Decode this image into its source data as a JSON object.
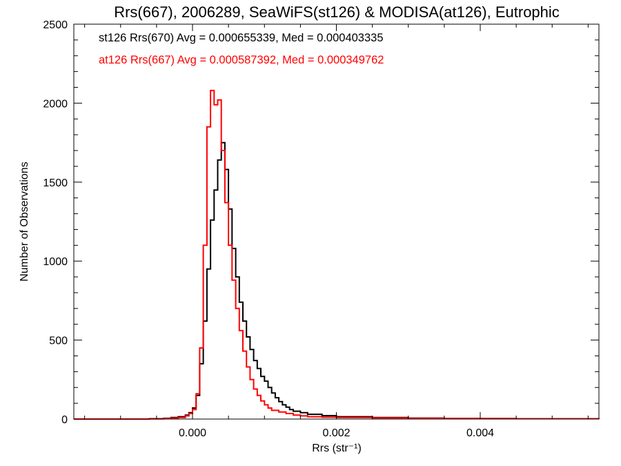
{
  "colors": {
    "series_st126": "#000000",
    "series_at126": "#ff0000"
  },
  "chart_data": {
    "type": "line",
    "style": "step-histogram",
    "title": "Rrs(667), 2006289, SeaWiFS(st126) & MODISA(at126), Eutrophic",
    "xlabel": "Rrs (str⁻¹)",
    "ylabel": "Number of Observations",
    "xlim": [
      -0.00165,
      0.00565
    ],
    "ylim": [
      0,
      2500
    ],
    "xticks": [
      0.0,
      0.002,
      0.004
    ],
    "xtick_labels": [
      "0.000",
      "0.002",
      "0.004"
    ],
    "yticks": [
      0,
      500,
      1000,
      1500,
      2000,
      2500
    ],
    "ytick_labels": [
      "0",
      "500",
      "1000",
      "1500",
      "2000",
      "2500"
    ],
    "grid": false,
    "legend_position": "top-left",
    "series": [
      {
        "label": "st126 Rrs(670) Avg = 0.000655339, Med = 0.000403335",
        "color": "#000000",
        "points": [
          [
            -0.00165,
            0
          ],
          [
            -0.001,
            0
          ],
          [
            -0.0006,
            2
          ],
          [
            -0.0004,
            5
          ],
          [
            -0.0003,
            10
          ],
          [
            -0.0002,
            15
          ],
          [
            -0.0001,
            25
          ],
          [
            -5e-05,
            40
          ],
          [
            0.0,
            70
          ],
          [
            5e-05,
            150
          ],
          [
            0.0001,
            350
          ],
          [
            0.00015,
            620
          ],
          [
            0.0002,
            950
          ],
          [
            0.00025,
            1260
          ],
          [
            0.0003,
            1450
          ],
          [
            0.00035,
            1640
          ],
          [
            0.0004,
            1750
          ],
          [
            0.00045,
            1580
          ],
          [
            0.0005,
            1330
          ],
          [
            0.00055,
            1080
          ],
          [
            0.0006,
            900
          ],
          [
            0.00065,
            740
          ],
          [
            0.0007,
            620
          ],
          [
            0.00075,
            520
          ],
          [
            0.0008,
            440
          ],
          [
            0.00085,
            370
          ],
          [
            0.0009,
            320
          ],
          [
            0.00095,
            270
          ],
          [
            0.001,
            240
          ],
          [
            0.00105,
            200
          ],
          [
            0.0011,
            165
          ],
          [
            0.00115,
            135
          ],
          [
            0.0012,
            110
          ],
          [
            0.00125,
            90
          ],
          [
            0.0013,
            75
          ],
          [
            0.00135,
            60
          ],
          [
            0.0014,
            50
          ],
          [
            0.0015,
            40
          ],
          [
            0.0016,
            30
          ],
          [
            0.0018,
            22
          ],
          [
            0.002,
            15
          ],
          [
            0.0025,
            10
          ],
          [
            0.003,
            6
          ],
          [
            0.0035,
            4
          ],
          [
            0.004,
            3
          ],
          [
            0.0045,
            2
          ],
          [
            0.005,
            2
          ],
          [
            0.00565,
            1
          ]
        ]
      },
      {
        "label": "at126 Rrs(667) Avg = 0.000587392, Med = 0.000349762",
        "color": "#ff0000",
        "points": [
          [
            -0.00165,
            0
          ],
          [
            -0.001,
            0
          ],
          [
            -0.0006,
            1
          ],
          [
            -0.0004,
            3
          ],
          [
            -0.0003,
            6
          ],
          [
            -0.0002,
            10
          ],
          [
            -0.0001,
            20
          ],
          [
            -5e-05,
            35
          ],
          [
            0.0,
            60
          ],
          [
            5e-05,
            160
          ],
          [
            0.0001,
            450
          ],
          [
            0.00015,
            1100
          ],
          [
            0.0002,
            1850
          ],
          [
            0.00025,
            2080
          ],
          [
            0.0003,
            1990
          ],
          [
            0.00035,
            2020
          ],
          [
            0.0004,
            1700
          ],
          [
            0.00045,
            1370
          ],
          [
            0.0005,
            1100
          ],
          [
            0.00055,
            880
          ],
          [
            0.0006,
            700
          ],
          [
            0.00065,
            560
          ],
          [
            0.0007,
            430
          ],
          [
            0.00075,
            330
          ],
          [
            0.0008,
            250
          ],
          [
            0.00085,
            190
          ],
          [
            0.0009,
            150
          ],
          [
            0.00095,
            115
          ],
          [
            0.001,
            90
          ],
          [
            0.00105,
            70
          ],
          [
            0.0011,
            55
          ],
          [
            0.0012,
            45
          ],
          [
            0.0013,
            35
          ],
          [
            0.0014,
            25
          ],
          [
            0.0015,
            20
          ],
          [
            0.0016,
            15
          ],
          [
            0.0018,
            12
          ],
          [
            0.002,
            10
          ],
          [
            0.0025,
            7
          ],
          [
            0.003,
            5
          ],
          [
            0.0035,
            4
          ],
          [
            0.004,
            3
          ],
          [
            0.0045,
            2
          ],
          [
            0.005,
            2
          ],
          [
            0.00565,
            1
          ]
        ]
      }
    ]
  }
}
